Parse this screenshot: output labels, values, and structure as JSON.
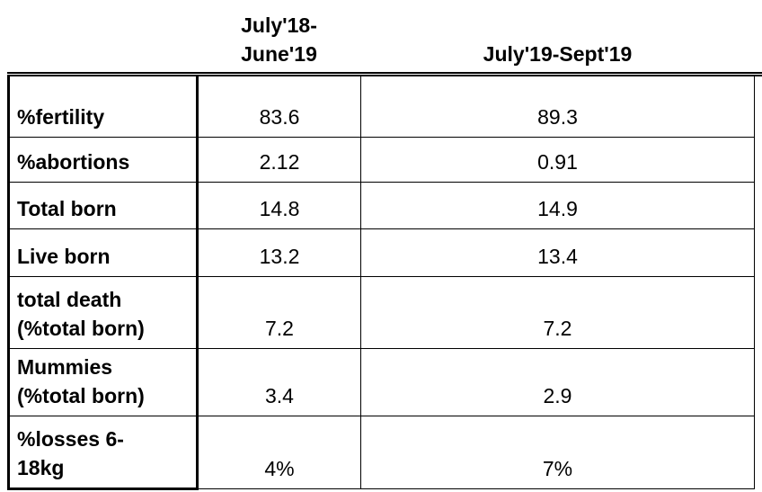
{
  "header": {
    "columns": [
      "July'18-\nJune'19",
      "July'19-Sept'19"
    ]
  },
  "table": {
    "rows": [
      [
        "%fertility",
        "83.6",
        "89.3"
      ],
      [
        "%abortions",
        "2.12",
        "0.91"
      ],
      [
        "Total born",
        "14.8",
        "14.9"
      ],
      [
        "Live born",
        "13.2",
        "13.4"
      ],
      [
        "total death\n(%total born)",
        "7.2",
        "7.2"
      ],
      [
        "Mummies\n(%total born)",
        "3.4",
        "2.9"
      ],
      [
        "%losses 6-\n18kg",
        "4%",
        "7%"
      ]
    ]
  }
}
